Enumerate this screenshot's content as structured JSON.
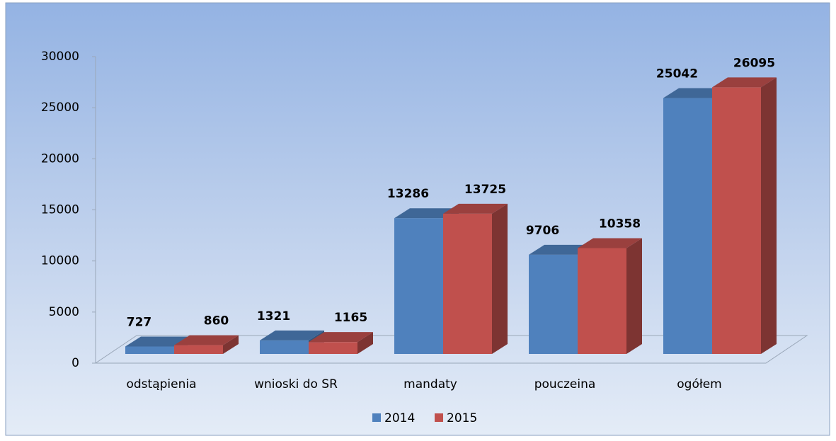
{
  "chart_data": {
    "type": "bar3d",
    "categories": [
      "odstąpienia",
      "wnioski do SR",
      "mandaty",
      "pouczeina",
      "ogółem"
    ],
    "series": [
      {
        "name": "2014",
        "color": "#4f81bd",
        "values": [
          727,
          1321,
          13286,
          9706,
          25042
        ]
      },
      {
        "name": "2015",
        "color": "#c0504d",
        "values": [
          860,
          1165,
          13725,
          10358,
          26095
        ]
      }
    ],
    "ylim": [
      0,
      30000
    ],
    "yticks": [
      0,
      5000,
      10000,
      15000,
      20000,
      25000,
      30000
    ],
    "grid": false,
    "legend": "bottom"
  }
}
